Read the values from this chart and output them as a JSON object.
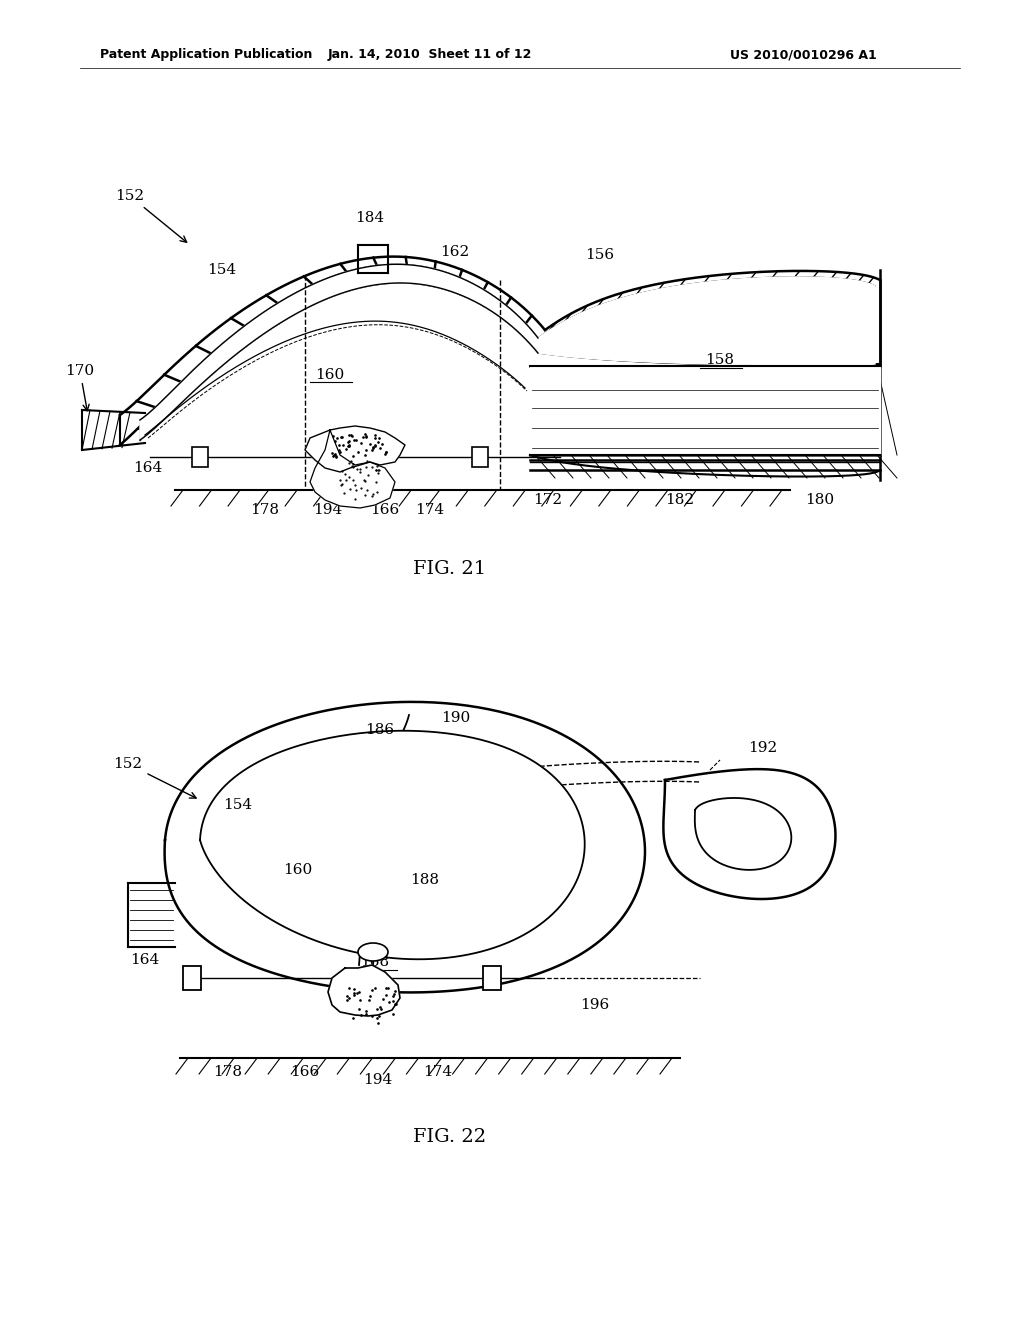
{
  "header_left": "Patent Application Publication",
  "header_mid": "Jan. 14, 2010  Sheet 11 of 12",
  "header_right": "US 2010/0010296 A1",
  "fig21_label": "FIG. 21",
  "fig22_label": "FIG. 22",
  "bg_color": "#ffffff",
  "line_color": "#000000"
}
